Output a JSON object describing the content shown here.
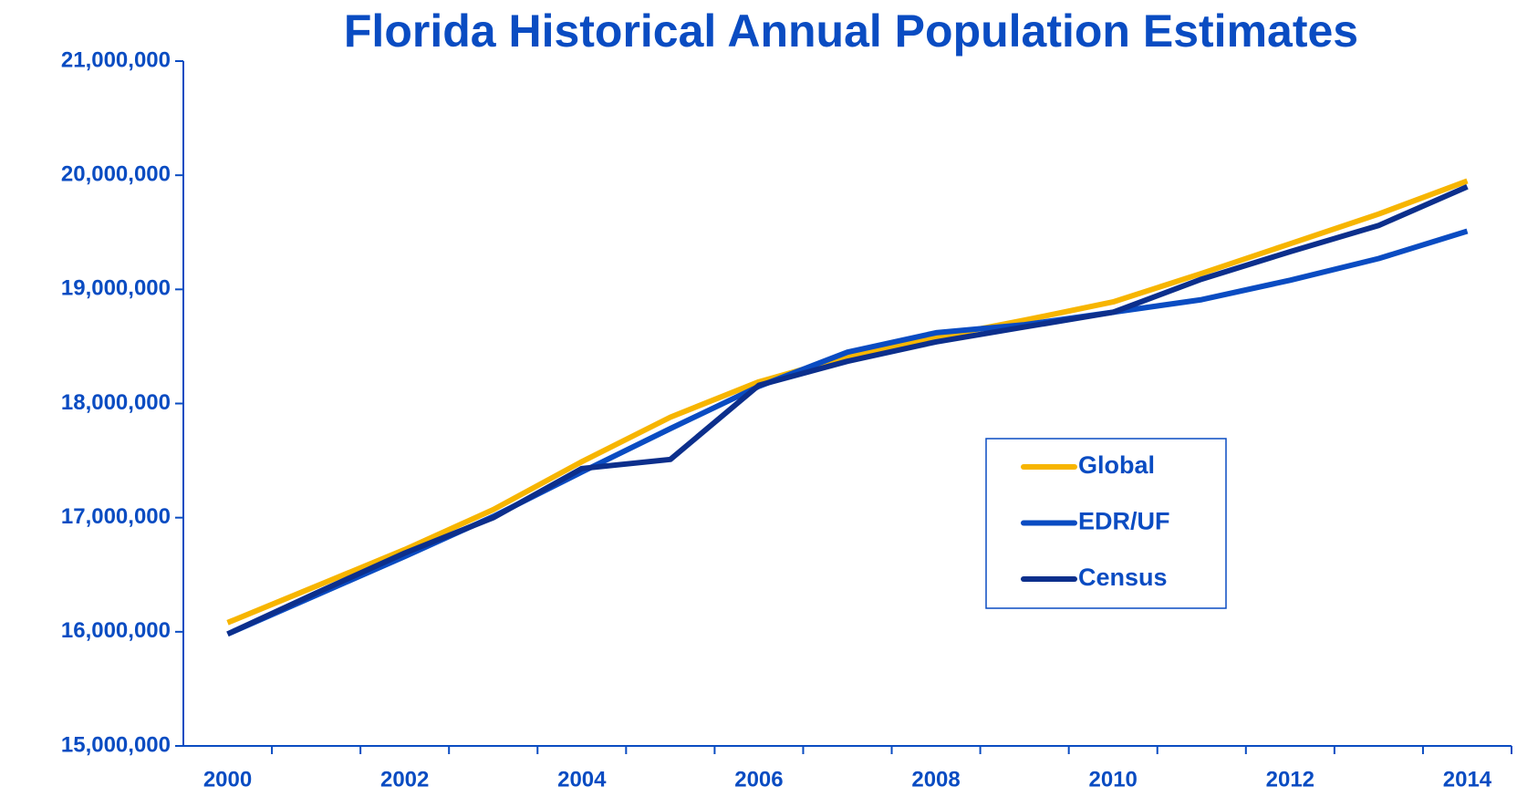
{
  "chart_data": {
    "type": "line",
    "title": "Florida Historical Annual Population Estimates",
    "categories": [
      "2000",
      null,
      "2002",
      null,
      "2004",
      null,
      "2006",
      null,
      "2008",
      null,
      "2010",
      null,
      "2012",
      null,
      "2014"
    ],
    "series": [
      {
        "name": "Global",
        "color": "#f7b500",
        "values": [
          16080000,
          16400000,
          16720000,
          17070000,
          17490000,
          17880000,
          18190000,
          18410000,
          18580000,
          18730000,
          18890000,
          19140000,
          19400000,
          19660000,
          19950000
        ]
      },
      {
        "name": "EDR/UF",
        "color": "#0a4cc2",
        "values": [
          15980000,
          16320000,
          16660000,
          17010000,
          17400000,
          17780000,
          18150000,
          18450000,
          18620000,
          18690000,
          18800000,
          18910000,
          19080000,
          19270000,
          19510000
        ]
      },
      {
        "name": "Census",
        "color": "#0c2f8c",
        "values": [
          15980000,
          16340000,
          16690000,
          17000000,
          17430000,
          17510000,
          18160000,
          18370000,
          18540000,
          18670000,
          18800000,
          19090000,
          19330000,
          19560000,
          19900000
        ]
      }
    ],
    "ylim": [
      15000000,
      21000000
    ],
    "yticks": [
      {
        "value": 15000000,
        "label": "15,000,000"
      },
      {
        "value": 16000000,
        "label": "16,000,000"
      },
      {
        "value": 17000000,
        "label": "17,000,000"
      },
      {
        "value": 18000000,
        "label": "18,000,000"
      },
      {
        "value": 19000000,
        "label": "19,000,000"
      },
      {
        "value": 20000000,
        "label": "20,000,000"
      },
      {
        "value": 21000000,
        "label": "21,000,000"
      }
    ],
    "grid": false,
    "legend": "right"
  }
}
